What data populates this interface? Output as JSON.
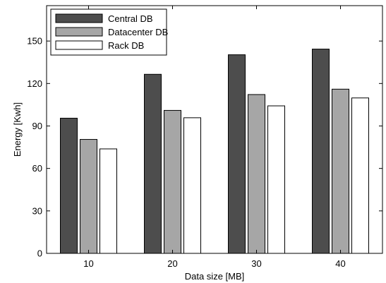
{
  "chart_data": {
    "type": "bar",
    "title": "",
    "xlabel": "Data size [MB]",
    "ylabel": "Energy [Kwh]",
    "categories": [
      "10",
      "20",
      "30",
      "40"
    ],
    "ylim": [
      0,
      175
    ],
    "yticks": [
      0,
      30,
      60,
      90,
      120,
      150
    ],
    "grid": false,
    "legend_position": "top-left",
    "series": [
      {
        "name": "Central DB",
        "color": "#4d4d4d",
        "values": [
          95.5,
          126.5,
          140.3,
          144.3
        ]
      },
      {
        "name": "Datacenter DB",
        "color": "#a6a6a6",
        "values": [
          80.5,
          101.0,
          112.2,
          116.0
        ]
      },
      {
        "name": "Rack DB",
        "color": "#ffffff",
        "values": [
          73.8,
          95.8,
          104.2,
          109.8
        ]
      }
    ]
  }
}
